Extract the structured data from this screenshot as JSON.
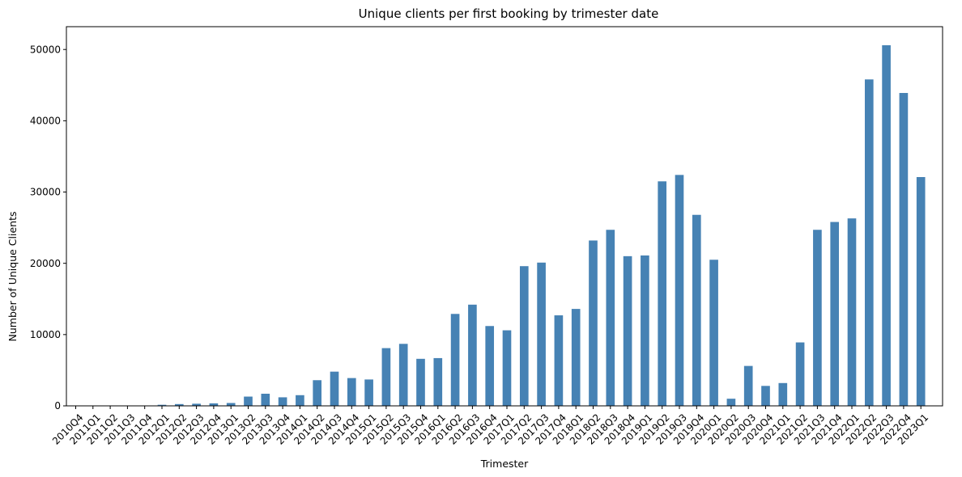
{
  "chart_data": {
    "type": "bar",
    "title": "Unique clients per first booking by trimester date",
    "xlabel": "Trimester",
    "ylabel": "Number of Unique Clients",
    "ylim": [
      0,
      53200
    ],
    "yticks": [
      0,
      10000,
      20000,
      30000,
      40000,
      50000
    ],
    "bar_color": "#4682b4",
    "grid": false,
    "categories": [
      "2010Q4",
      "2011Q1",
      "2011Q2",
      "2011Q3",
      "2011Q4",
      "2012Q1",
      "2012Q2",
      "2012Q3",
      "2012Q4",
      "2013Q1",
      "2013Q2",
      "2013Q3",
      "2013Q4",
      "2014Q1",
      "2014Q2",
      "2014Q3",
      "2014Q4",
      "2015Q1",
      "2015Q2",
      "2015Q3",
      "2015Q4",
      "2016Q1",
      "2016Q2",
      "2016Q3",
      "2016Q4",
      "2017Q1",
      "2017Q2",
      "2017Q3",
      "2017Q4",
      "2018Q1",
      "2018Q2",
      "2018Q3",
      "2018Q4",
      "2019Q1",
      "2019Q2",
      "2019Q3",
      "2019Q4",
      "2020Q1",
      "2020Q2",
      "2020Q3",
      "2020Q4",
      "2021Q1",
      "2021Q2",
      "2021Q3",
      "2021Q4",
      "2022Q1",
      "2022Q2",
      "2022Q3",
      "2022Q4",
      "2023Q1"
    ],
    "values": [
      5,
      10,
      15,
      20,
      40,
      150,
      250,
      300,
      350,
      400,
      1300,
      1700,
      1200,
      1500,
      3600,
      4800,
      3900,
      3700,
      8100,
      8700,
      6600,
      6700,
      12900,
      14200,
      11200,
      10600,
      19600,
      20100,
      12700,
      13600,
      23200,
      24700,
      21000,
      21100,
      31500,
      32400,
      26800,
      20500,
      1000,
      5600,
      2800,
      3200,
      8900,
      24700,
      25800,
      26300,
      45800,
      50600,
      43900,
      32100
    ]
  }
}
